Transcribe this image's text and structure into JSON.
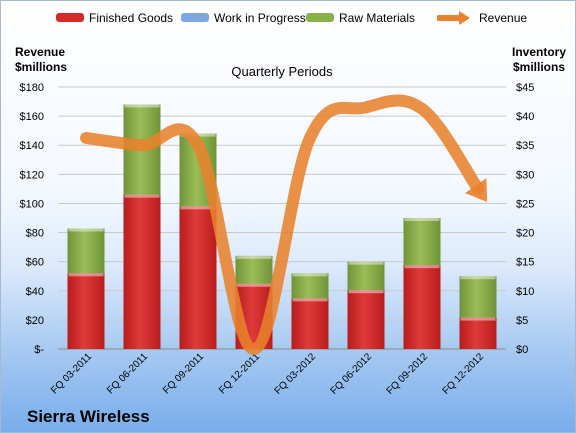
{
  "chart_data": {
    "type": "bar",
    "stacked": true,
    "title": "Quarterly Periods",
    "left_axis_title": [
      "Revenue",
      "$millions"
    ],
    "right_axis_title": [
      "Inventory",
      "$millions"
    ],
    "categories": [
      "FQ 03-2011",
      "FQ 06-2011",
      "FQ 09-2011",
      "FQ 12-2011",
      "FQ 03-2012",
      "FQ 06-2012",
      "FQ 09-2012",
      "FQ 12-2012"
    ],
    "series": [
      {
        "name": "Finished Goods",
        "axis": "right",
        "color": "#d62a2a",
        "values": [
          13.0,
          26.5,
          24.5,
          11.2,
          8.7,
          10.1,
          14.4,
          5.4
        ]
      },
      {
        "name": "Work in Progress",
        "axis": "right",
        "color": "#7da7e0",
        "values": [
          0,
          0,
          0,
          0,
          0,
          0,
          0,
          0
        ]
      },
      {
        "name": "Raw Materials",
        "axis": "right",
        "color": "#8ab04a",
        "values": [
          7.7,
          15.5,
          12.5,
          4.8,
          4.3,
          4.9,
          8.1,
          7.1
        ]
      },
      {
        "name": "Revenue",
        "axis": "left",
        "type": "line",
        "color": "#e8822e",
        "values": [
          145,
          140,
          140,
          0,
          145,
          166,
          165,
          110
        ]
      }
    ],
    "left_axis": {
      "min": 0,
      "max": 180,
      "step": 20,
      "tick_labels": [
        "$-",
        "$20",
        "$40",
        "$60",
        "$80",
        "$100",
        "$120",
        "$140",
        "$160",
        "$180"
      ]
    },
    "right_axis": {
      "min": 0,
      "max": 45,
      "step": 5,
      "tick_labels": [
        "$0",
        "$5",
        "$10",
        "$15",
        "$20",
        "$25",
        "$30",
        "$35",
        "$40",
        "$45"
      ]
    },
    "grid": true,
    "legend": "top"
  },
  "brand": "Sierra Wireless"
}
